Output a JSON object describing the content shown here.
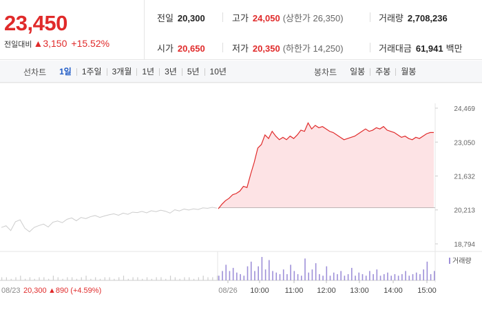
{
  "price": {
    "current": "23,450",
    "change_label": "전일대비",
    "change_arrow": "▲",
    "change_value": "3,150",
    "change_pct": "+15.52%"
  },
  "stats": {
    "prev_close": {
      "label": "전일",
      "value": "20,300"
    },
    "high": {
      "label": "고가",
      "value": "24,050",
      "extra": "(상한가 26,350)"
    },
    "volume": {
      "label": "거래량",
      "value": "2,708,236"
    },
    "open": {
      "label": "시가",
      "value": "20,650"
    },
    "low": {
      "label": "저가",
      "value": "20,350",
      "extra": "(하한가 14,250)"
    },
    "amount": {
      "label": "거래대금",
      "value": "61,941",
      "unit": "백만"
    }
  },
  "line_tabs": {
    "label": "선차트",
    "items": [
      "1일",
      "1주일",
      "3개월",
      "1년",
      "3년",
      "5년",
      "10년"
    ],
    "active": "1일"
  },
  "candle_tabs": {
    "label": "봉차트",
    "items": [
      "일봉",
      "주봉",
      "월봉"
    ]
  },
  "colors": {
    "up": "#e02a2a",
    "active_tab": "#1f5bc6",
    "volume": "#9d8fd8",
    "prev_day_line": "#cccccc",
    "fill": "#fde3e5"
  },
  "chart_data": {
    "type": "line",
    "y_ticks": [
      "24,469",
      "23,050",
      "21,632",
      "20,213",
      "18,794"
    ],
    "ylim": [
      18794,
      24469
    ],
    "x_labels": [
      "08/26",
      "10:00",
      "11:00",
      "12:00",
      "13:00",
      "14:00",
      "15:00"
    ],
    "volume_legend": "거래량",
    "prev_day": {
      "label": "08/23",
      "close": "20,300",
      "arrow": "▲",
      "change": "890",
      "change_pct": "(+4.59%)",
      "values": [
        19480,
        19550,
        19350,
        19720,
        19800,
        19450,
        19300,
        19480,
        19560,
        19620,
        19500,
        19700,
        19750,
        19680,
        19820,
        19880,
        19760,
        19900,
        19850,
        19930,
        19980,
        19900,
        19960,
        20010,
        20050,
        19990,
        20080,
        20030,
        20120,
        20100,
        20150,
        20090,
        20180,
        20140,
        20200,
        20160,
        20080,
        20220,
        20170,
        20250,
        20210,
        20260,
        20230,
        20300,
        20280,
        20320,
        20290
      ]
    },
    "series": [
      {
        "values": [
          20260,
          20450,
          20600,
          20700,
          20850,
          20900,
          21000,
          21200,
          21150,
          21700,
          22200,
          22800,
          22950,
          23350,
          23200,
          23500,
          23300,
          23150,
          23250,
          23150,
          23300,
          23200,
          23350,
          23550,
          23500,
          23850,
          23600,
          23750,
          23650,
          23700,
          23600,
          23500,
          23450,
          23350,
          23250,
          23150,
          23200,
          23250,
          23300,
          23400,
          23500,
          23600,
          23500,
          23550,
          23650,
          23600,
          23700,
          23550,
          23500,
          23450,
          23350,
          23250,
          23300,
          23200,
          23150,
          23250,
          23200,
          23300,
          23400,
          23450,
          23450
        ]
      }
    ],
    "volume_today": [
      3,
      6,
      10,
      6,
      8,
      5,
      4,
      3,
      9,
      12,
      6,
      9,
      15,
      7,
      13,
      6,
      5,
      4,
      7,
      4,
      10,
      6,
      4,
      3,
      14,
      5,
      7,
      11,
      4,
      3,
      9,
      3,
      5,
      4,
      6,
      3,
      4,
      8,
      3,
      5,
      4,
      3,
      6,
      4,
      7,
      3,
      4,
      5,
      3,
      4,
      3,
      4,
      6,
      3,
      4,
      5,
      4,
      7,
      12,
      4,
      6
    ],
    "volume_prev": [
      2,
      2,
      1,
      2,
      3,
      1,
      2,
      1,
      2,
      2,
      1,
      3,
      2,
      1,
      2,
      2,
      1,
      2,
      3,
      1,
      2,
      1,
      2,
      2,
      1,
      2,
      3,
      1,
      2,
      2,
      1,
      2,
      1,
      2,
      2,
      1,
      3,
      2,
      1,
      2,
      2,
      1,
      2,
      3,
      2,
      2,
      3
    ]
  }
}
